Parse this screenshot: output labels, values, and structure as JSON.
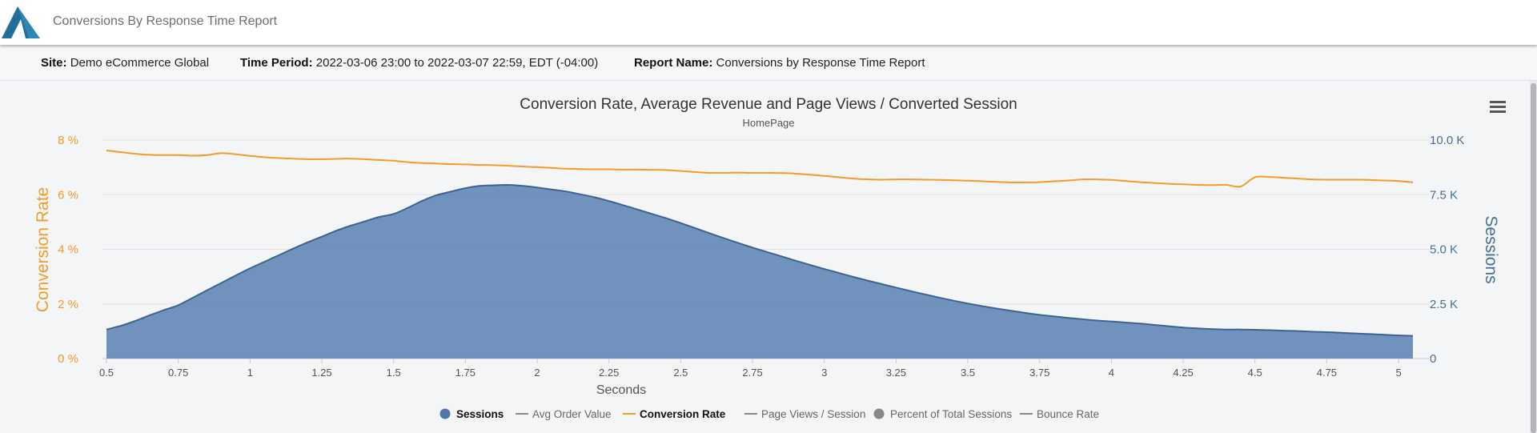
{
  "header": {
    "app_title": "Conversions By Response Time Report"
  },
  "info": {
    "site_label": "Site:",
    "site_value": "Demo eCommerce Global",
    "period_label": "Time Period:",
    "period_value": "2022-03-06 23:00 to 2022-03-07 22:59, EDT (-04:00)",
    "report_label": "Report Name:",
    "report_value": "Conversions by Response Time Report"
  },
  "colors": {
    "sessions": "#4f79ad",
    "conversion": "#f39b2b",
    "gray_series": "#888888",
    "logo": "#1f6f9a"
  },
  "icons": {
    "menu": "hamburger-icon",
    "logo": "triangle-logo"
  },
  "chart_data": {
    "type": "area",
    "title": "Conversion Rate, Average Revenue and Page Views / Converted Session",
    "subtitle": "HomePage",
    "xlabel": "Seconds",
    "ylabel_left": "Conversion Rate",
    "ylabel_right": "Sessions",
    "x_ticks": [
      "0.5",
      "0.75",
      "1",
      "1.25",
      "1.5",
      "1.75",
      "2",
      "2.25",
      "2.5",
      "2.75",
      "3",
      "3.25",
      "3.5",
      "3.75",
      "4",
      "4.25",
      "4.5",
      "4.75",
      "5"
    ],
    "y_left_ticks": [
      "0 %",
      "2 %",
      "4 %",
      "6 %",
      "8 %"
    ],
    "y_right_ticks": [
      "0",
      "2.5 K",
      "5.0 K",
      "7.5 K",
      "10.0 K"
    ],
    "xlim": [
      0.5,
      5.05
    ],
    "ylim_left": [
      0,
      8
    ],
    "ylim_right": [
      0,
      10000
    ],
    "grid": true,
    "legend_position": "bottom",
    "x": [
      0.5,
      0.55,
      0.6,
      0.65,
      0.7,
      0.75,
      0.8,
      0.85,
      0.9,
      0.95,
      1.0,
      1.05,
      1.1,
      1.15,
      1.2,
      1.25,
      1.3,
      1.35,
      1.4,
      1.45,
      1.5,
      1.55,
      1.6,
      1.65,
      1.7,
      1.75,
      1.8,
      1.85,
      1.9,
      1.95,
      2.0,
      2.05,
      2.1,
      2.15,
      2.2,
      2.25,
      2.3,
      2.35,
      2.4,
      2.45,
      2.5,
      2.55,
      2.6,
      2.65,
      2.7,
      2.75,
      2.8,
      2.85,
      2.9,
      2.95,
      3.0,
      3.05,
      3.1,
      3.15,
      3.2,
      3.25,
      3.3,
      3.35,
      3.4,
      3.45,
      3.5,
      3.55,
      3.6,
      3.65,
      3.7,
      3.75,
      3.8,
      3.85,
      3.9,
      3.95,
      4.0,
      4.05,
      4.1,
      4.15,
      4.2,
      4.25,
      4.3,
      4.35,
      4.4,
      4.45,
      4.5,
      4.55,
      4.6,
      4.65,
      4.7,
      4.75,
      4.8,
      4.85,
      4.9,
      4.95,
      5.0,
      5.05
    ],
    "series": [
      {
        "name": "Sessions",
        "axis": "right",
        "values": [
          1330,
          1500,
          1720,
          1980,
          2220,
          2440,
          2780,
          3120,
          3460,
          3800,
          4130,
          4430,
          4730,
          5030,
          5320,
          5580,
          5850,
          6080,
          6280,
          6480,
          6620,
          6900,
          7220,
          7480,
          7640,
          7800,
          7900,
          7930,
          7950,
          7900,
          7830,
          7740,
          7650,
          7520,
          7380,
          7210,
          7020,
          6820,
          6620,
          6420,
          6200,
          5970,
          5740,
          5510,
          5290,
          5080,
          4880,
          4680,
          4480,
          4290,
          4100,
          3920,
          3740,
          3570,
          3410,
          3250,
          3090,
          2940,
          2790,
          2650,
          2520,
          2400,
          2290,
          2190,
          2090,
          2000,
          1930,
          1860,
          1800,
          1740,
          1700,
          1650,
          1600,
          1540,
          1480,
          1420,
          1380,
          1350,
          1330,
          1330,
          1320,
          1300,
          1280,
          1260,
          1230,
          1210,
          1180,
          1150,
          1120,
          1090,
          1060,
          1040
        ]
      },
      {
        "name": "Conversion Rate",
        "axis": "left",
        "values": [
          7.62,
          7.56,
          7.5,
          7.46,
          7.45,
          7.45,
          7.43,
          7.45,
          7.52,
          7.48,
          7.42,
          7.37,
          7.34,
          7.32,
          7.3,
          7.3,
          7.31,
          7.32,
          7.3,
          7.27,
          7.24,
          7.19,
          7.16,
          7.14,
          7.12,
          7.11,
          7.09,
          7.08,
          7.06,
          7.03,
          7.01,
          6.98,
          6.95,
          6.94,
          6.93,
          6.93,
          6.92,
          6.92,
          6.91,
          6.9,
          6.87,
          6.83,
          6.8,
          6.8,
          6.81,
          6.8,
          6.8,
          6.79,
          6.77,
          6.73,
          6.69,
          6.64,
          6.59,
          6.56,
          6.55,
          6.56,
          6.56,
          6.55,
          6.54,
          6.53,
          6.51,
          6.49,
          6.47,
          6.45,
          6.45,
          6.46,
          6.49,
          6.52,
          6.56,
          6.56,
          6.54,
          6.5,
          6.46,
          6.43,
          6.4,
          6.38,
          6.36,
          6.35,
          6.36,
          6.3,
          6.64,
          6.65,
          6.62,
          6.59,
          6.56,
          6.55,
          6.55,
          6.55,
          6.54,
          6.52,
          6.5,
          6.45
        ]
      }
    ],
    "legend": [
      {
        "name": "Sessions",
        "marker": "circle",
        "color": "#4f79ad",
        "active": true
      },
      {
        "name": "Avg Order Value",
        "marker": "line",
        "color": "#888888",
        "active": false
      },
      {
        "name": "Conversion Rate",
        "marker": "line",
        "color": "#f39b2b",
        "active": true
      },
      {
        "name": "Page Views / Session",
        "marker": "line",
        "color": "#888888",
        "active": false
      },
      {
        "name": "Percent of Total Sessions",
        "marker": "circle",
        "color": "#888888",
        "active": false
      },
      {
        "name": "Bounce Rate",
        "marker": "line",
        "color": "#888888",
        "active": false
      }
    ]
  }
}
